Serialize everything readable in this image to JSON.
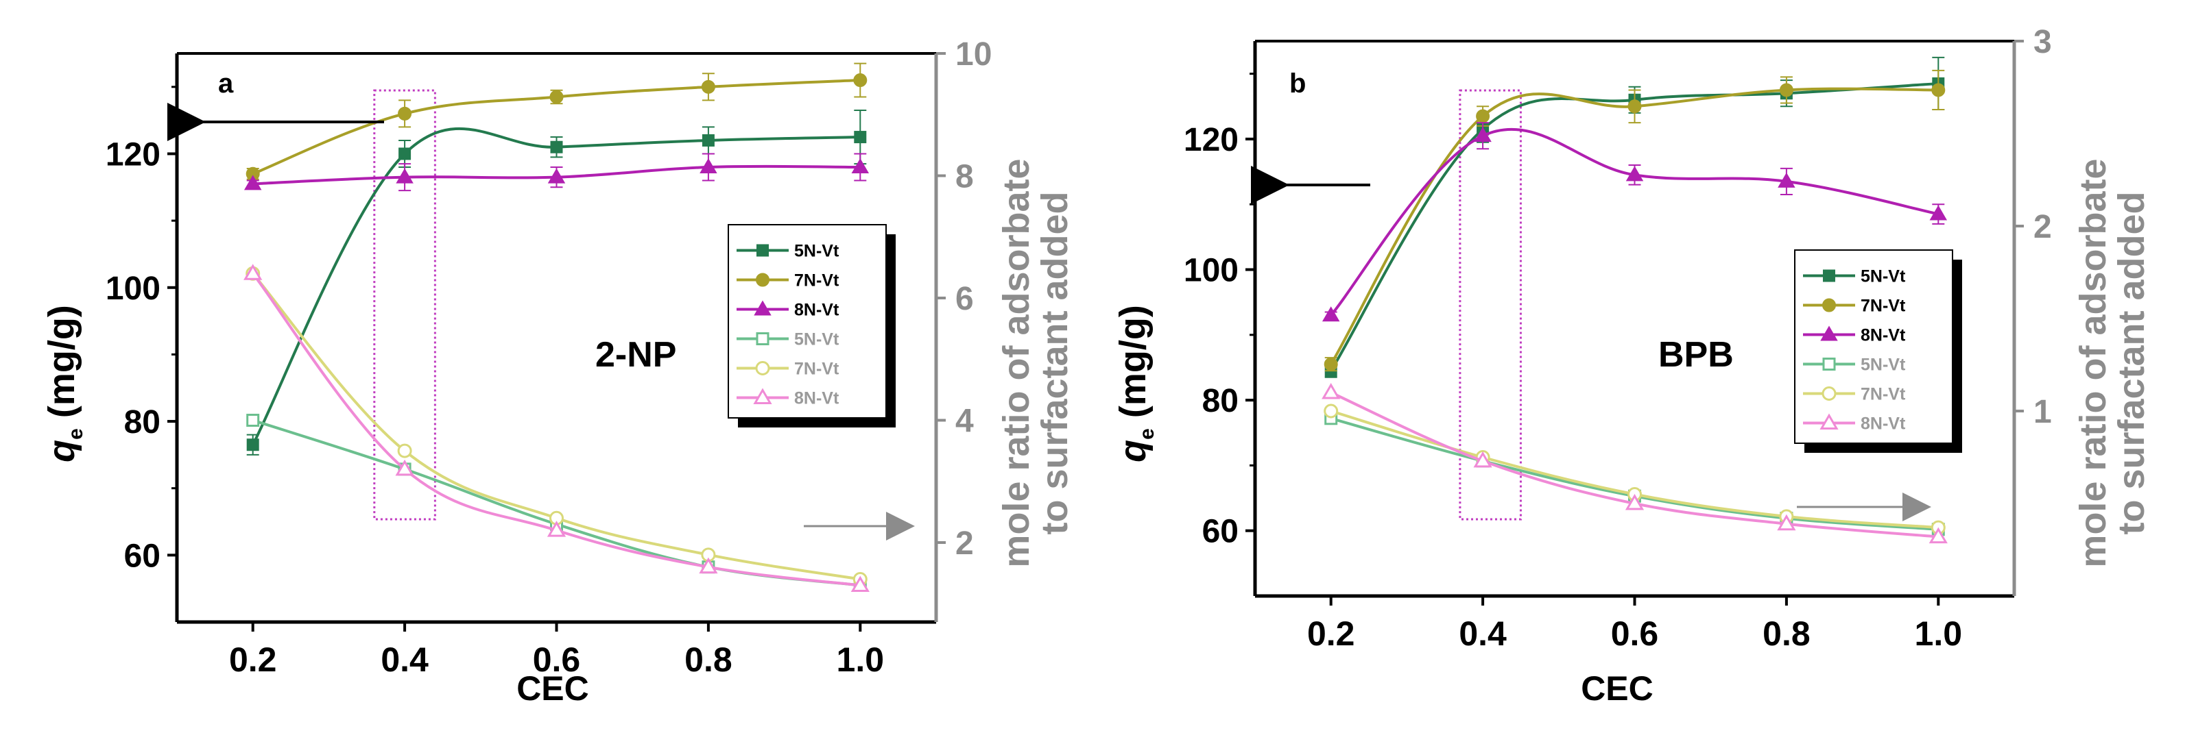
{
  "chart_data": [
    {
      "type": "line",
      "panel_label": "a",
      "annotation": "2-NP",
      "xlabel": "CEC",
      "ylabel_main": "q",
      "ylabel_sub": "e",
      "ylabel_unit": " (mg/g)",
      "y2label_line1": "mole ratio of adsorbate",
      "y2label_line2": "to surfactant added",
      "categories": [
        "0.2",
        "0.4",
        "0.6",
        "0.8",
        "1.0"
      ],
      "x": [
        0.2,
        0.4,
        0.6,
        0.8,
        1.0
      ],
      "xlim": [
        0.1,
        1.1
      ],
      "ylim": [
        50,
        135
      ],
      "y_ticks": [
        60,
        80,
        100,
        120
      ],
      "y2lim": [
        0.7,
        10
      ],
      "y2_ticks": [
        2,
        4,
        6,
        8,
        10
      ],
      "highlight_box": [
        0.36,
        0.44
      ],
      "series": [
        {
          "name": "5N-Vt",
          "axis": "left",
          "marker": "square",
          "filled": true,
          "color": "#237a4e",
          "values": [
            76.5,
            120.0,
            121.0,
            122.0,
            122.5
          ],
          "errors": [
            1.5,
            2.0,
            1.5,
            2.0,
            4.0
          ]
        },
        {
          "name": "7N-Vt",
          "axis": "left",
          "marker": "circle",
          "filled": true,
          "color": "#a89f28",
          "values": [
            117.0,
            126.0,
            128.5,
            130.0,
            131.0
          ],
          "errors": [
            0.8,
            2.0,
            1.0,
            2.0,
            2.5
          ]
        },
        {
          "name": "8N-Vt",
          "axis": "left",
          "marker": "triangle",
          "filled": true,
          "color": "#b01fb0",
          "values": [
            115.5,
            116.5,
            116.5,
            118.0,
            118.0
          ],
          "errors": [
            0.5,
            2.0,
            1.5,
            2.0,
            2.0
          ]
        },
        {
          "name": "5N-Vt",
          "axis": "right",
          "marker": "square",
          "filled": false,
          "color": "#6bbf8e",
          "values": [
            4.0,
            3.2,
            2.3,
            1.6,
            1.3
          ],
          "errors": []
        },
        {
          "name": "7N-Vt",
          "axis": "right",
          "marker": "circle",
          "filled": false,
          "color": "#d9d97a",
          "values": [
            6.4,
            3.5,
            2.4,
            1.8,
            1.4
          ],
          "errors": []
        },
        {
          "name": "8N-Vt",
          "axis": "right",
          "marker": "triangle",
          "filled": false,
          "color": "#f08ad6",
          "values": [
            6.4,
            3.2,
            2.2,
            1.6,
            1.3
          ],
          "errors": []
        }
      ]
    },
    {
      "type": "line",
      "panel_label": "b",
      "annotation": "BPB",
      "xlabel": "CEC",
      "ylabel_main": "q",
      "ylabel_sub": "e",
      "ylabel_unit": " (mg/g)",
      "y2label_line1": "mole ratio of adsorbate",
      "y2label_line2": "to surfactant added",
      "categories": [
        "0.2",
        "0.4",
        "0.6",
        "0.8",
        "1.0"
      ],
      "x": [
        0.2,
        0.4,
        0.6,
        0.8,
        1.0
      ],
      "xlim": [
        0.1,
        1.1
      ],
      "ylim": [
        50,
        135
      ],
      "y_ticks": [
        60,
        80,
        100,
        120
      ],
      "y2lim": [
        0.0,
        3.0
      ],
      "y2_ticks": [
        1,
        2,
        3
      ],
      "highlight_box": [
        0.37,
        0.45
      ],
      "series": [
        {
          "name": "5N-Vt",
          "axis": "left",
          "marker": "square",
          "filled": true,
          "color": "#237a4e",
          "values": [
            84.5,
            121.5,
            126.0,
            127.0,
            128.5
          ],
          "errors": [
            1.0,
            2.0,
            2.0,
            2.0,
            4.0
          ]
        },
        {
          "name": "7N-Vt",
          "axis": "left",
          "marker": "circle",
          "filled": true,
          "color": "#a89f28",
          "values": [
            85.5,
            123.5,
            125.0,
            127.5,
            127.5
          ],
          "errors": [
            1.0,
            1.5,
            2.5,
            2.0,
            3.0
          ]
        },
        {
          "name": "8N-Vt",
          "axis": "left",
          "marker": "triangle",
          "filled": true,
          "color": "#b01fb0",
          "values": [
            93.0,
            120.5,
            114.5,
            113.5,
            108.5
          ],
          "errors": [
            0.5,
            2.0,
            1.5,
            2.0,
            1.5
          ]
        },
        {
          "name": "5N-Vt",
          "axis": "right",
          "marker": "square",
          "filled": false,
          "color": "#6bbf8e",
          "values": [
            0.96,
            0.73,
            0.54,
            0.42,
            0.36
          ],
          "errors": []
        },
        {
          "name": "7N-Vt",
          "axis": "right",
          "marker": "circle",
          "filled": false,
          "color": "#d9d97a",
          "values": [
            1.0,
            0.75,
            0.55,
            0.43,
            0.37
          ],
          "errors": []
        },
        {
          "name": "8N-Vt",
          "axis": "right",
          "marker": "triangle",
          "filled": false,
          "color": "#f08ad6",
          "values": [
            1.1,
            0.73,
            0.5,
            0.39,
            0.32
          ],
          "errors": []
        }
      ]
    }
  ]
}
